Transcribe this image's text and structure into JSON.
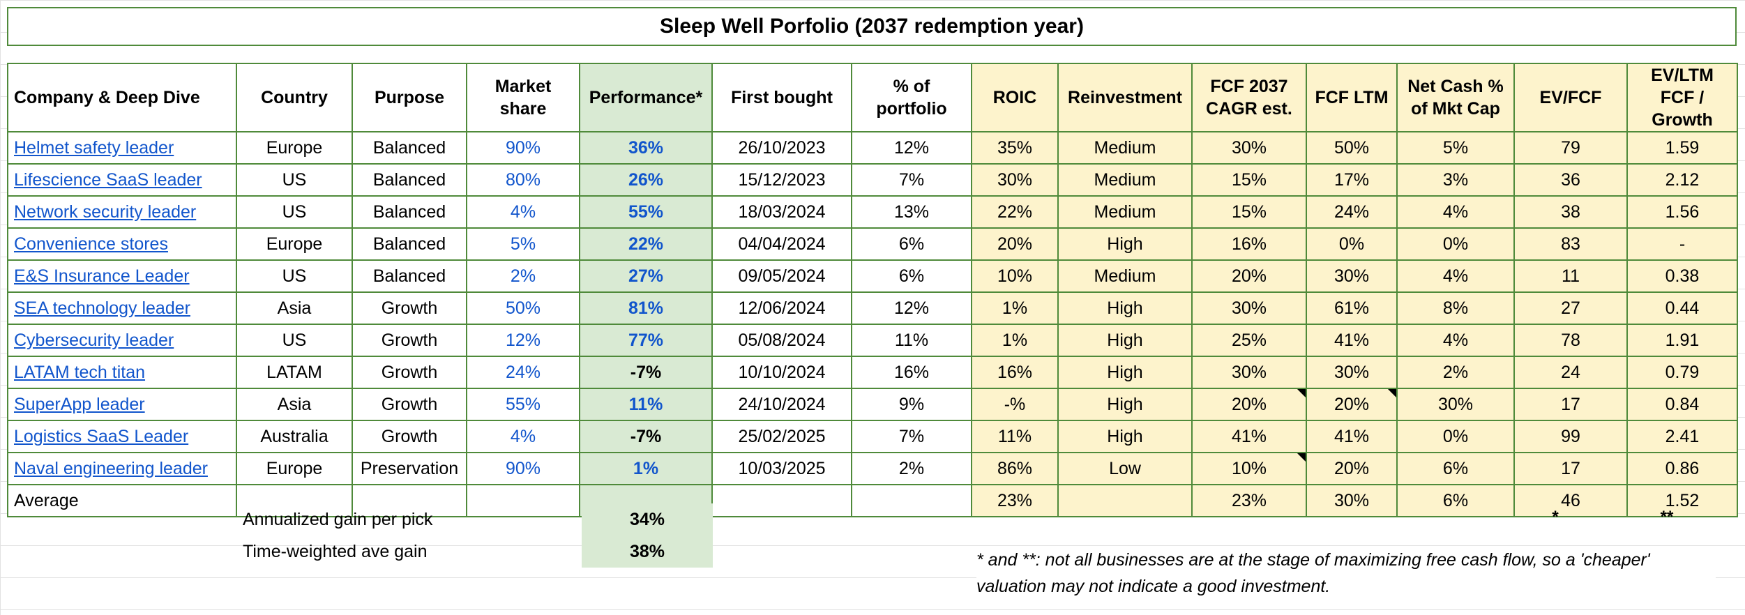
{
  "title": "Sleep Well Porfolio (2037 redemption year)",
  "headers": [
    "Company & Deep Dive",
    "Country",
    "Purpose",
    "Market share",
    "Performance*",
    "First bought",
    "% of portfolio",
    "ROIC",
    "Reinvestment",
    "FCF 2037 CAGR est.",
    "FCF LTM",
    "Net Cash % of Mkt Cap",
    "EV/FCF",
    "EV/LTM FCF / Growth"
  ],
  "rows": [
    [
      "Helmet safety leader",
      "Europe",
      "Balanced",
      "90%",
      "36%",
      "26/10/2023",
      "12%",
      "35%",
      "Medium",
      "30%",
      "50%",
      "5%",
      "79",
      "1.59"
    ],
    [
      "Lifescience SaaS leader",
      "US",
      "Balanced",
      "80%",
      "26%",
      "15/12/2023",
      "7%",
      "30%",
      "Medium",
      "15%",
      "17%",
      "3%",
      "36",
      "2.12"
    ],
    [
      "Network security leader",
      "US",
      "Balanced",
      "4%",
      "55%",
      "18/03/2024",
      "13%",
      "22%",
      "Medium",
      "15%",
      "24%",
      "4%",
      "38",
      "1.56"
    ],
    [
      "Convenience stores",
      "Europe",
      "Balanced",
      "5%",
      "22%",
      "04/04/2024",
      "6%",
      "20%",
      "High",
      "16%",
      "0%",
      "0%",
      "83",
      "-"
    ],
    [
      "E&S Insurance Leader",
      "US",
      "Balanced",
      "2%",
      "27%",
      "09/05/2024",
      "6%",
      "10%",
      "Medium",
      "20%",
      "30%",
      "4%",
      "11",
      "0.38"
    ],
    [
      "SEA technology leader",
      "Asia",
      "Growth",
      "50%",
      "81%",
      "12/06/2024",
      "12%",
      "1%",
      "High",
      "30%",
      "61%",
      "8%",
      "27",
      "0.44"
    ],
    [
      "Cybersecurity leader",
      "US",
      "Growth",
      "12%",
      "77%",
      "05/08/2024",
      "11%",
      "1%",
      "High",
      "25%",
      "41%",
      "4%",
      "78",
      "1.91"
    ],
    [
      "LATAM tech titan",
      "LATAM",
      "Growth",
      "24%",
      "-7%",
      "10/10/2024",
      "16%",
      "16%",
      "High",
      "30%",
      "30%",
      "2%",
      "24",
      "0.79"
    ],
    [
      "SuperApp leader",
      "Asia",
      "Growth",
      "55%",
      "11%",
      "24/10/2024",
      "9%",
      "-%",
      "High",
      "20%",
      "20%",
      "30%",
      "17",
      "0.84"
    ],
    [
      "Logistics SaaS Leader",
      "Australia",
      "Growth",
      "4%",
      "-7%",
      "25/02/2025",
      "7%",
      "11%",
      "High",
      "41%",
      "41%",
      "0%",
      "99",
      "2.41"
    ],
    [
      "Naval engineering leader",
      "Europe",
      "Preservation",
      "90%",
      "1%",
      "10/03/2025",
      "2%",
      "86%",
      "Low",
      "10%",
      "20%",
      "6%",
      "17",
      "0.86"
    ]
  ],
  "average": {
    "label": "Average",
    "roic": "23%",
    "fcf_cagr": "23%",
    "fcf_ltm": "30%",
    "net_cash": "6%",
    "ev_fcf": "46",
    "ev_ltm_growth": "1.52"
  },
  "summary": {
    "annualized_label": "Annualized gain per pick",
    "annualized_value": "34%",
    "time_weighted_label": "Time-weighted ave gain",
    "time_weighted_value": "38%"
  },
  "asterisk_ev_fcf": "*",
  "asterisk_ev_growth": "**",
  "footnote": "* and **: not all businesses are at the stage of maximizing free cash flow, so a 'cheaper' valuation may not indicate a good investment.",
  "colors": {
    "border": "#4f8a3a",
    "yellow": "#fdf3cc",
    "green": "#d9ead3",
    "link": "#1155cc"
  }
}
